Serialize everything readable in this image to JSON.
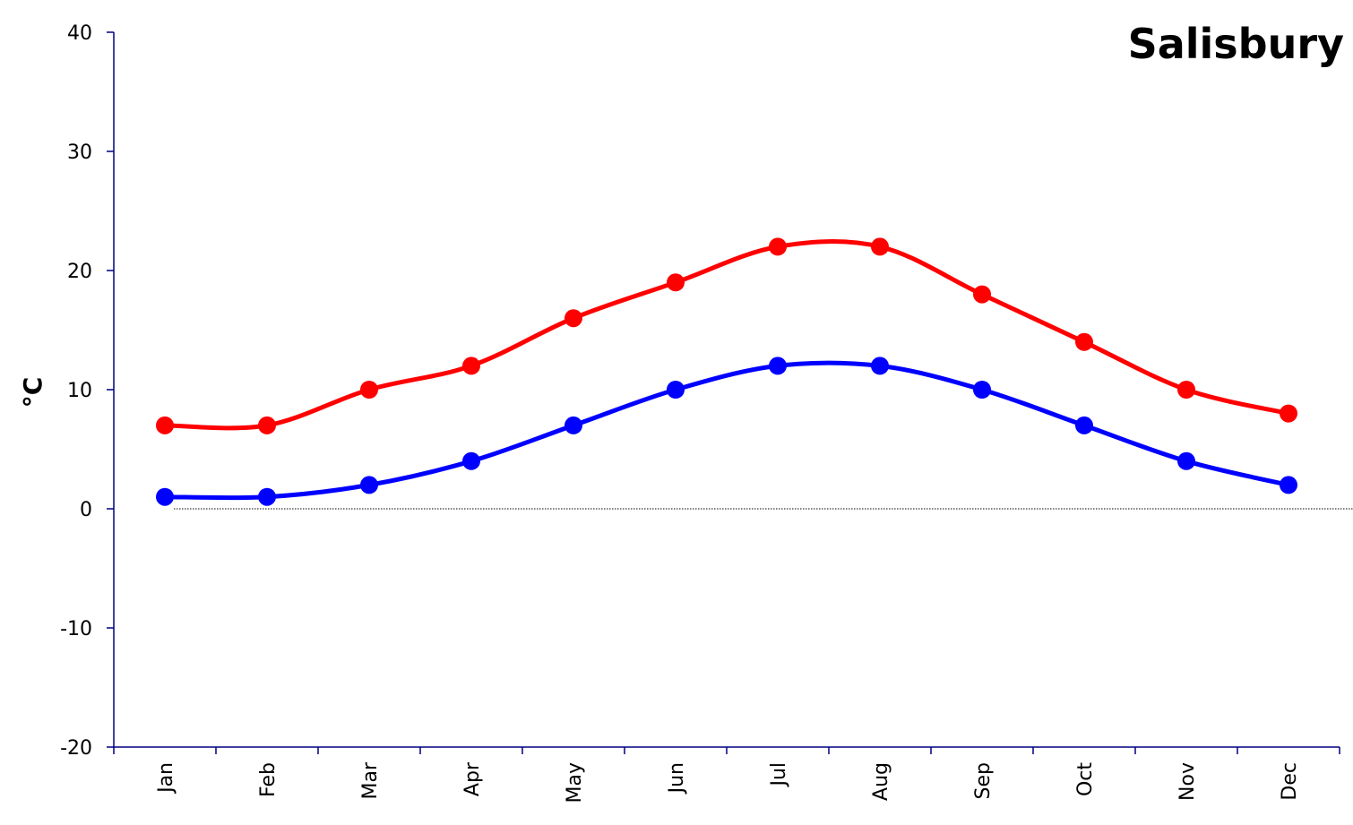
{
  "chart_data": {
    "type": "line",
    "title": "Salisbury",
    "xlabel": "",
    "ylabel": "°C",
    "categories": [
      "Jan",
      "Feb",
      "Mar",
      "Apr",
      "May",
      "Jun",
      "Jul",
      "Aug",
      "Sep",
      "Oct",
      "Nov",
      "Dec"
    ],
    "ylim": [
      -20,
      40
    ],
    "yticks": [
      "40",
      "30",
      "20",
      "10",
      "0",
      "-10",
      "-20"
    ],
    "grid": false,
    "zero_line": true,
    "series": [
      {
        "color": "#ff0000",
        "values": [
          7,
          7,
          10,
          12,
          16,
          19,
          22,
          22,
          18,
          14,
          10,
          8
        ]
      },
      {
        "color": "#0000ff",
        "values": [
          1,
          1,
          2,
          4,
          7,
          10,
          12,
          12,
          10,
          7,
          4,
          2
        ]
      }
    ]
  }
}
